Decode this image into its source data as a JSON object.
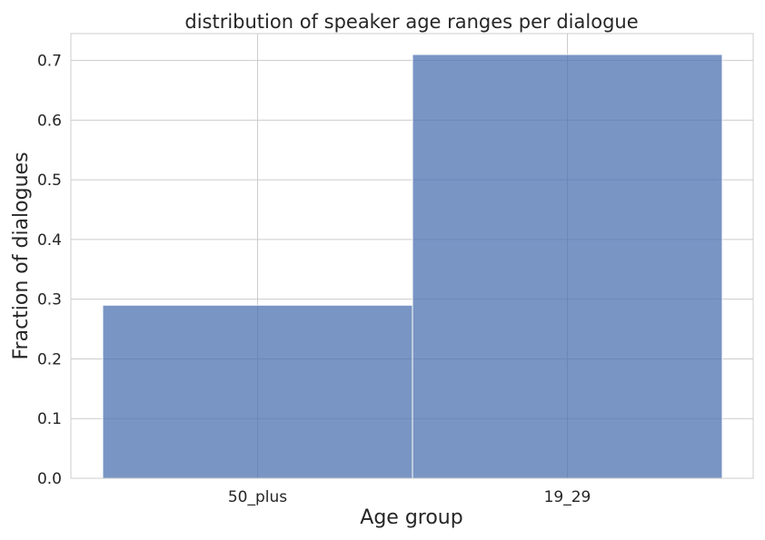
{
  "chart_data": {
    "type": "bar",
    "title": "distribution of speaker age ranges per dialogue",
    "xlabel": "Age group",
    "ylabel": "Fraction of dialogues",
    "categories": [
      "50_plus",
      "19_29"
    ],
    "values": [
      0.29,
      0.71
    ],
    "ylim": [
      0,
      0.745
    ],
    "yticks": [
      "0.0",
      "0.1",
      "0.2",
      "0.3",
      "0.4",
      "0.5",
      "0.6",
      "0.7"
    ],
    "grid": true,
    "bar_color": "#4c72b0"
  }
}
